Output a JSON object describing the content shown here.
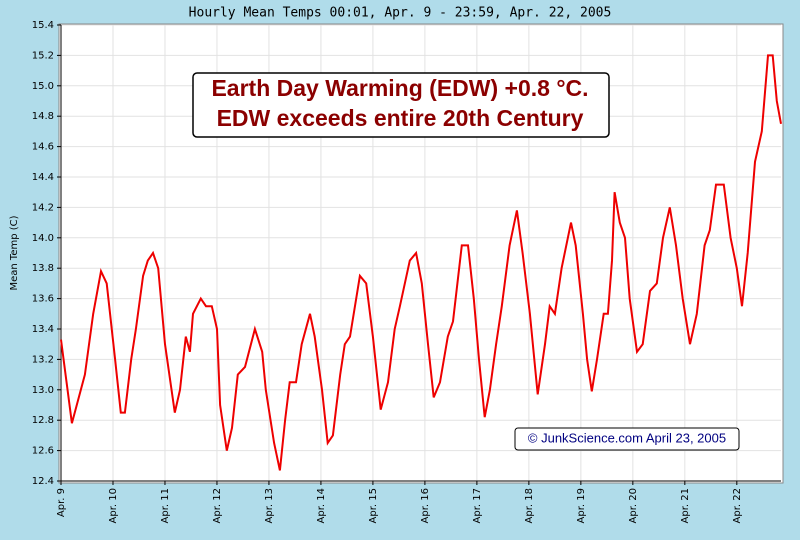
{
  "chart_data": {
    "type": "line",
    "title": "Hourly Mean Temps 00:01, Apr. 9 - 23:59, Apr. 22, 2005",
    "y_label": "Mean Temp (C)",
    "annotations": [
      "Earth Day Warming (EDW) +0.8 °C.",
      "EDW exceeds entire 20th Century"
    ],
    "credit": "© JunkScience.com April 23, 2005",
    "color": "#ee0000",
    "grid": true,
    "xlim": [
      9,
      22.85
    ],
    "ylim": [
      12.4,
      15.4
    ],
    "xticks": [
      {
        "value": 9,
        "label": "Apr. 9"
      },
      {
        "value": 10,
        "label": "Apr. 10"
      },
      {
        "value": 11,
        "label": "Apr. 11"
      },
      {
        "value": 12,
        "label": "Apr. 12"
      },
      {
        "value": 13,
        "label": "Apr. 13"
      },
      {
        "value": 14,
        "label": "Apr. 14"
      },
      {
        "value": 15,
        "label": "Apr. 15"
      },
      {
        "value": 16,
        "label": "Apr. 16"
      },
      {
        "value": 17,
        "label": "Apr. 17"
      },
      {
        "value": 18,
        "label": "Apr. 18"
      },
      {
        "value": 19,
        "label": "Apr. 19"
      },
      {
        "value": 20,
        "label": "Apr. 20"
      },
      {
        "value": 21,
        "label": "Apr. 21"
      },
      {
        "value": 22,
        "label": "Apr. 22"
      }
    ],
    "yticks": [
      12.4,
      12.6,
      12.8,
      {
        "value": 13,
        "label": "13.0"
      },
      13.2,
      13.4,
      13.6,
      13.8,
      {
        "value": 14,
        "label": "14.0"
      },
      14.2,
      14.4,
      14.6,
      14.8,
      {
        "value": 15,
        "label": "15.0"
      },
      15.2,
      15.4
    ],
    "x": [
      9.0,
      9.21,
      9.46,
      9.62,
      9.77,
      9.88,
      10.04,
      10.15,
      10.23,
      10.35,
      10.44,
      10.58,
      10.67,
      10.77,
      10.87,
      11.0,
      11.19,
      11.29,
      11.4,
      11.48,
      11.54,
      11.69,
      11.79,
      11.9,
      12.0,
      12.06,
      12.19,
      12.29,
      12.4,
      12.54,
      12.73,
      12.87,
      12.94,
      13.1,
      13.21,
      13.31,
      13.4,
      13.52,
      13.63,
      13.79,
      13.88,
      14.02,
      14.13,
      14.23,
      14.37,
      14.46,
      14.56,
      14.75,
      14.87,
      15.0,
      15.15,
      15.29,
      15.42,
      15.52,
      15.71,
      15.83,
      15.94,
      16.06,
      16.17,
      16.29,
      16.44,
      16.54,
      16.71,
      16.83,
      16.94,
      17.04,
      17.15,
      17.25,
      17.37,
      17.48,
      17.63,
      17.77,
      17.88,
      18.02,
      18.17,
      18.31,
      18.4,
      18.5,
      18.63,
      18.81,
      18.9,
      19.04,
      19.12,
      19.21,
      19.31,
      19.44,
      19.52,
      19.6,
      19.65,
      19.75,
      19.85,
      19.94,
      20.08,
      20.19,
      20.33,
      20.46,
      20.58,
      20.71,
      20.83,
      20.96,
      21.1,
      21.23,
      21.38,
      21.48,
      21.6,
      21.75,
      21.88,
      22.0,
      22.1,
      22.21,
      22.35,
      22.48,
      22.6,
      22.69,
      22.77,
      22.85
    ],
    "values": [
      13.33,
      12.78,
      13.1,
      13.5,
      13.78,
      13.7,
      13.2,
      12.85,
      12.85,
      13.2,
      13.4,
      13.75,
      13.85,
      13.9,
      13.8,
      13.3,
      12.85,
      13.0,
      13.35,
      13.25,
      13.5,
      13.6,
      13.55,
      13.55,
      13.4,
      12.9,
      12.6,
      12.75,
      13.1,
      13.15,
      13.4,
      13.25,
      13.0,
      12.65,
      12.47,
      12.8,
      13.05,
      13.05,
      13.3,
      13.5,
      13.35,
      13.0,
      12.65,
      12.7,
      13.1,
      13.3,
      13.35,
      13.75,
      13.7,
      13.35,
      12.87,
      13.05,
      13.4,
      13.55,
      13.85,
      13.9,
      13.7,
      13.3,
      12.95,
      13.05,
      13.35,
      13.45,
      13.95,
      13.95,
      13.6,
      13.2,
      12.82,
      13.0,
      13.3,
      13.55,
      13.95,
      14.18,
      13.9,
      13.5,
      12.97,
      13.3,
      13.55,
      13.5,
      13.8,
      14.1,
      13.95,
      13.5,
      13.2,
      12.99,
      13.2,
      13.5,
      13.5,
      13.85,
      14.3,
      14.1,
      14.0,
      13.6,
      13.25,
      13.3,
      13.65,
      13.7,
      14.0,
      14.2,
      13.95,
      13.6,
      13.3,
      13.5,
      13.95,
      14.05,
      14.35,
      14.35,
      14.0,
      13.8,
      13.55,
      13.9,
      14.5,
      14.7,
      15.2,
      15.2,
      14.9,
      14.75
    ]
  }
}
